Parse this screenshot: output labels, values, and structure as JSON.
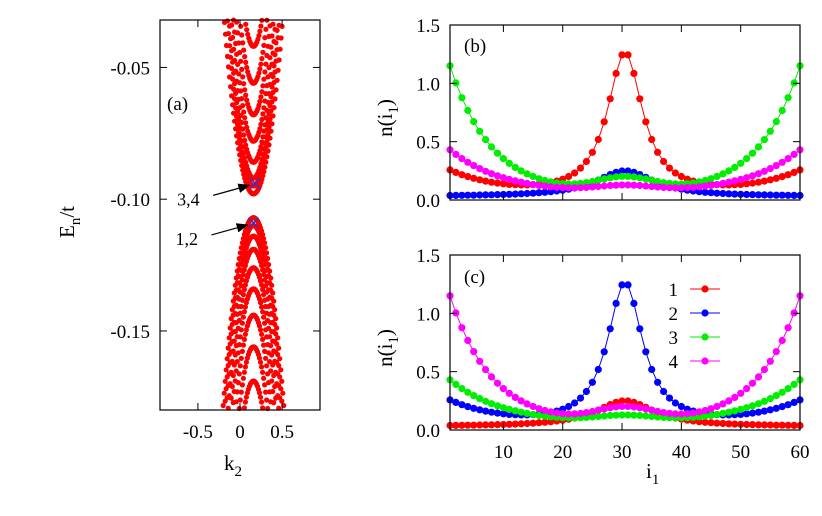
{
  "chart_data": [
    {
      "type": "scatter",
      "panel": "(a)",
      "xlabel_base": "k",
      "xlabel_sub": "2",
      "ylabel_base": "E",
      "ylabel_sub": "n",
      "ylabel_tail": "/t",
      "xlim": [
        -0.95,
        0.95
      ],
      "ylim": [
        -0.18,
        -0.032
      ],
      "xticks": [
        -0.5,
        0,
        0.5
      ],
      "xtick_labels": [
        "-0.5",
        "0",
        "0.5"
      ],
      "yticks": [
        -0.05,
        -0.1,
        -0.15
      ],
      "ytick_labels": [
        "-0.05",
        "-0.10",
        "-0.15"
      ],
      "series_color": "#ff0000",
      "marker_color": "#3333cc",
      "bands": {
        "upper_offsets": [
          0,
          0.003,
          0.006,
          0.012,
          0.02,
          0.03,
          0.042,
          0.056
        ],
        "lower_offsets": [
          0,
          0.003,
          0.007,
          0.012,
          0.019,
          0.027,
          0.037,
          0.049,
          0.062
        ],
        "k0": 0.16,
        "gap_top": -0.094,
        "gap_bottom": -0.109
      },
      "markers": [
        {
          "label": "3,4",
          "x": 0.18,
          "y": -0.094
        },
        {
          "label": "1,2",
          "x": 0.16,
          "y": -0.109
        }
      ]
    },
    {
      "type": "line",
      "panel": "(b)",
      "xlabel_base": "i",
      "xlabel_sub": "1",
      "ylabel_base": "n(i",
      "ylabel_sub": "1",
      "ylabel_tail": ")",
      "xlim": [
        1,
        60
      ],
      "ylim": [
        0,
        1.5
      ],
      "yticks": [
        0,
        0.5,
        1.0,
        1.5
      ],
      "ytick_labels": [
        "0.0",
        "0.5",
        "1.0",
        "1.5"
      ],
      "series": [
        {
          "color": "#ff0000",
          "kind": "peak",
          "base": 0.02,
          "amp": 1.23,
          "width": 3.6,
          "edge": 0.22
        },
        {
          "color": "#0000ff",
          "kind": "peak",
          "base": 0.03,
          "amp": 0.22,
          "width": 6.0,
          "edge": 0.0
        },
        {
          "color": "#00ee00",
          "kind": "edge",
          "center_amp": 0.12,
          "edge_amp": 1.1,
          "decay": 7.0
        },
        {
          "color": "#ff00ff",
          "kind": "edge",
          "center_amp": 0.05,
          "edge_amp": 0.38,
          "decay": 9.0
        }
      ]
    },
    {
      "type": "line",
      "panel": "(c)",
      "xlabel_base": "i",
      "xlabel_sub": "1",
      "ylabel_base": "n(i",
      "ylabel_sub": "1",
      "ylabel_tail": ")",
      "xlim": [
        1,
        60
      ],
      "ylim": [
        0,
        1.5
      ],
      "xticks": [
        10,
        20,
        30,
        40,
        50,
        60
      ],
      "xtick_labels": [
        "10",
        "20",
        "30",
        "40",
        "50",
        "60"
      ],
      "yticks": [
        0,
        0.5,
        1.0,
        1.5
      ],
      "ytick_labels": [
        "0.0",
        "0.5",
        "1.0",
        "1.5"
      ],
      "legend": [
        "1",
        "2",
        "3",
        "4"
      ],
      "series": [
        {
          "color": "#ff0000",
          "kind": "peak",
          "base": 0.03,
          "amp": 0.22,
          "width": 6.0,
          "edge": 0.0
        },
        {
          "color": "#0000ff",
          "kind": "peak",
          "base": 0.02,
          "amp": 1.23,
          "width": 3.6,
          "edge": 0.22
        },
        {
          "color": "#00ee00",
          "kind": "edge",
          "center_amp": 0.05,
          "edge_amp": 0.38,
          "decay": 9.0
        },
        {
          "color": "#ff00ff",
          "kind": "edge",
          "center_amp": 0.12,
          "edge_amp": 1.1,
          "decay": 7.0
        }
      ]
    }
  ]
}
